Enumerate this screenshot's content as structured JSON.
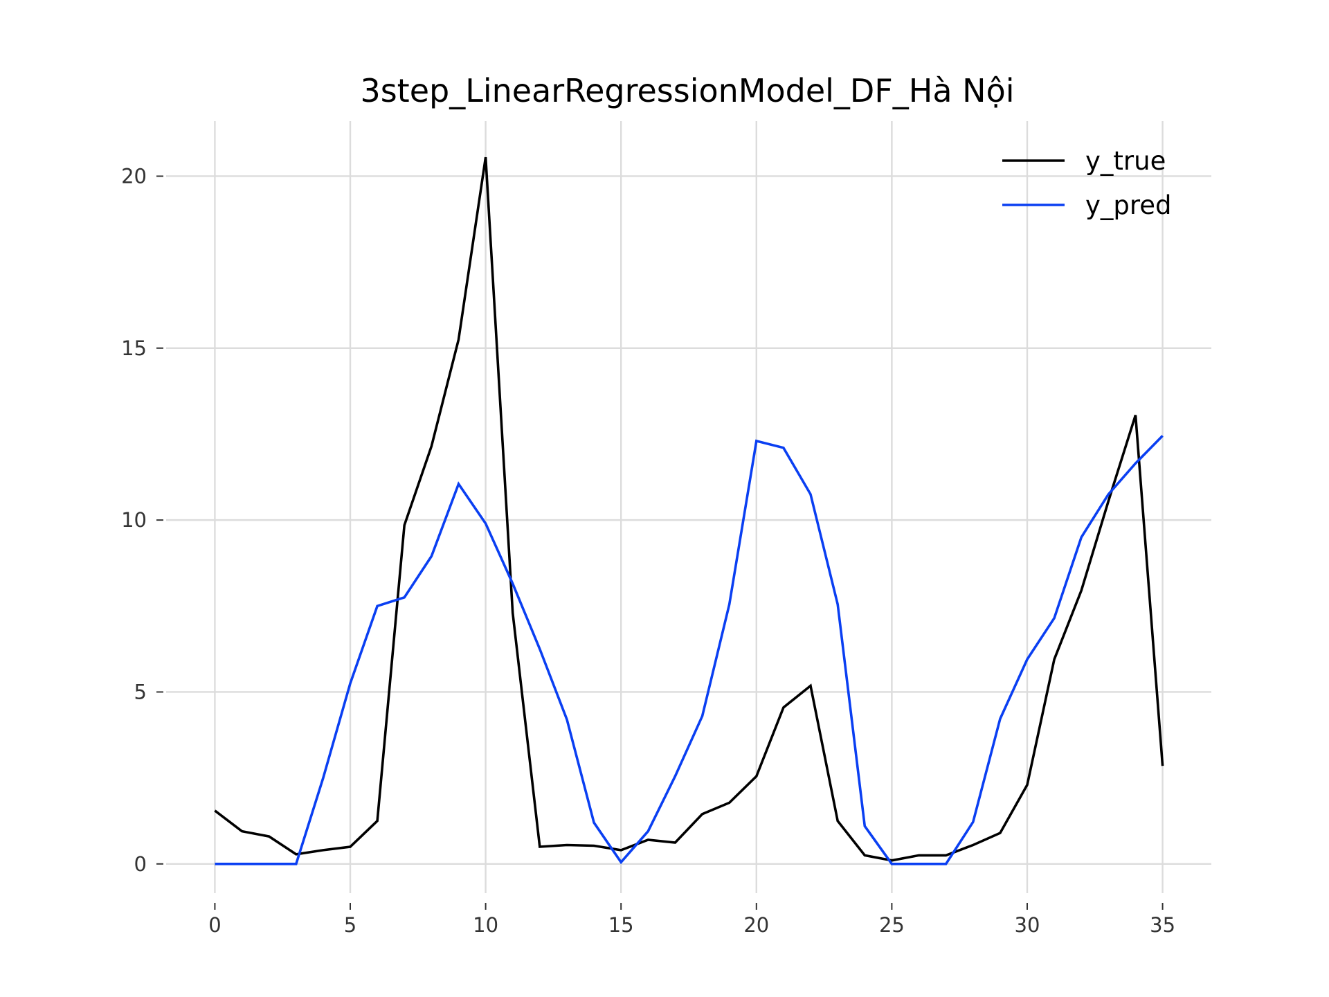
{
  "chart_data": {
    "type": "line",
    "title": "3step_LinearRegressionModel_DF_Hà Nội",
    "xlabel": "",
    "ylabel": "",
    "xlim": [
      -1.8,
      36.8
    ],
    "ylim": [
      -0.85,
      21.6
    ],
    "xticks": [
      0,
      5,
      10,
      15,
      20,
      25,
      30,
      35
    ],
    "yticks": [
      0,
      5,
      10,
      15,
      20
    ],
    "grid": true,
    "legend_position": "top-right",
    "x": [
      0,
      1,
      2,
      3,
      4,
      5,
      6,
      7,
      8,
      9,
      10,
      11,
      12,
      13,
      14,
      15,
      16,
      17,
      18,
      19,
      20,
      21,
      22,
      23,
      24,
      25,
      26,
      27,
      28,
      29,
      30,
      31,
      32,
      33,
      34,
      35
    ],
    "series": [
      {
        "name": "y_true",
        "color": "#000000",
        "values": [
          1.55,
          0.95,
          0.8,
          0.28,
          0.4,
          0.5,
          1.25,
          9.85,
          12.15,
          15.25,
          20.55,
          7.3,
          0.5,
          0.55,
          0.53,
          0.4,
          0.7,
          0.62,
          1.45,
          1.78,
          2.55,
          4.55,
          5.18,
          1.25,
          0.25,
          0.1,
          0.25,
          0.25,
          0.55,
          0.9,
          2.3,
          5.95,
          7.95,
          10.55,
          13.05,
          2.85
        ]
      },
      {
        "name": "y_pred",
        "color": "#0a3ff2",
        "values": [
          0,
          0,
          0,
          0,
          2.5,
          5.25,
          7.5,
          7.75,
          8.95,
          11.05,
          9.9,
          8.15,
          6.25,
          4.2,
          1.2,
          0.05,
          0.95,
          2.55,
          4.3,
          7.55,
          12.3,
          12.1,
          10.75,
          7.55,
          1.1,
          0,
          0,
          0,
          1.22,
          4.22,
          5.95,
          7.15,
          9.5,
          10.75,
          11.65,
          12.45
        ]
      }
    ]
  }
}
